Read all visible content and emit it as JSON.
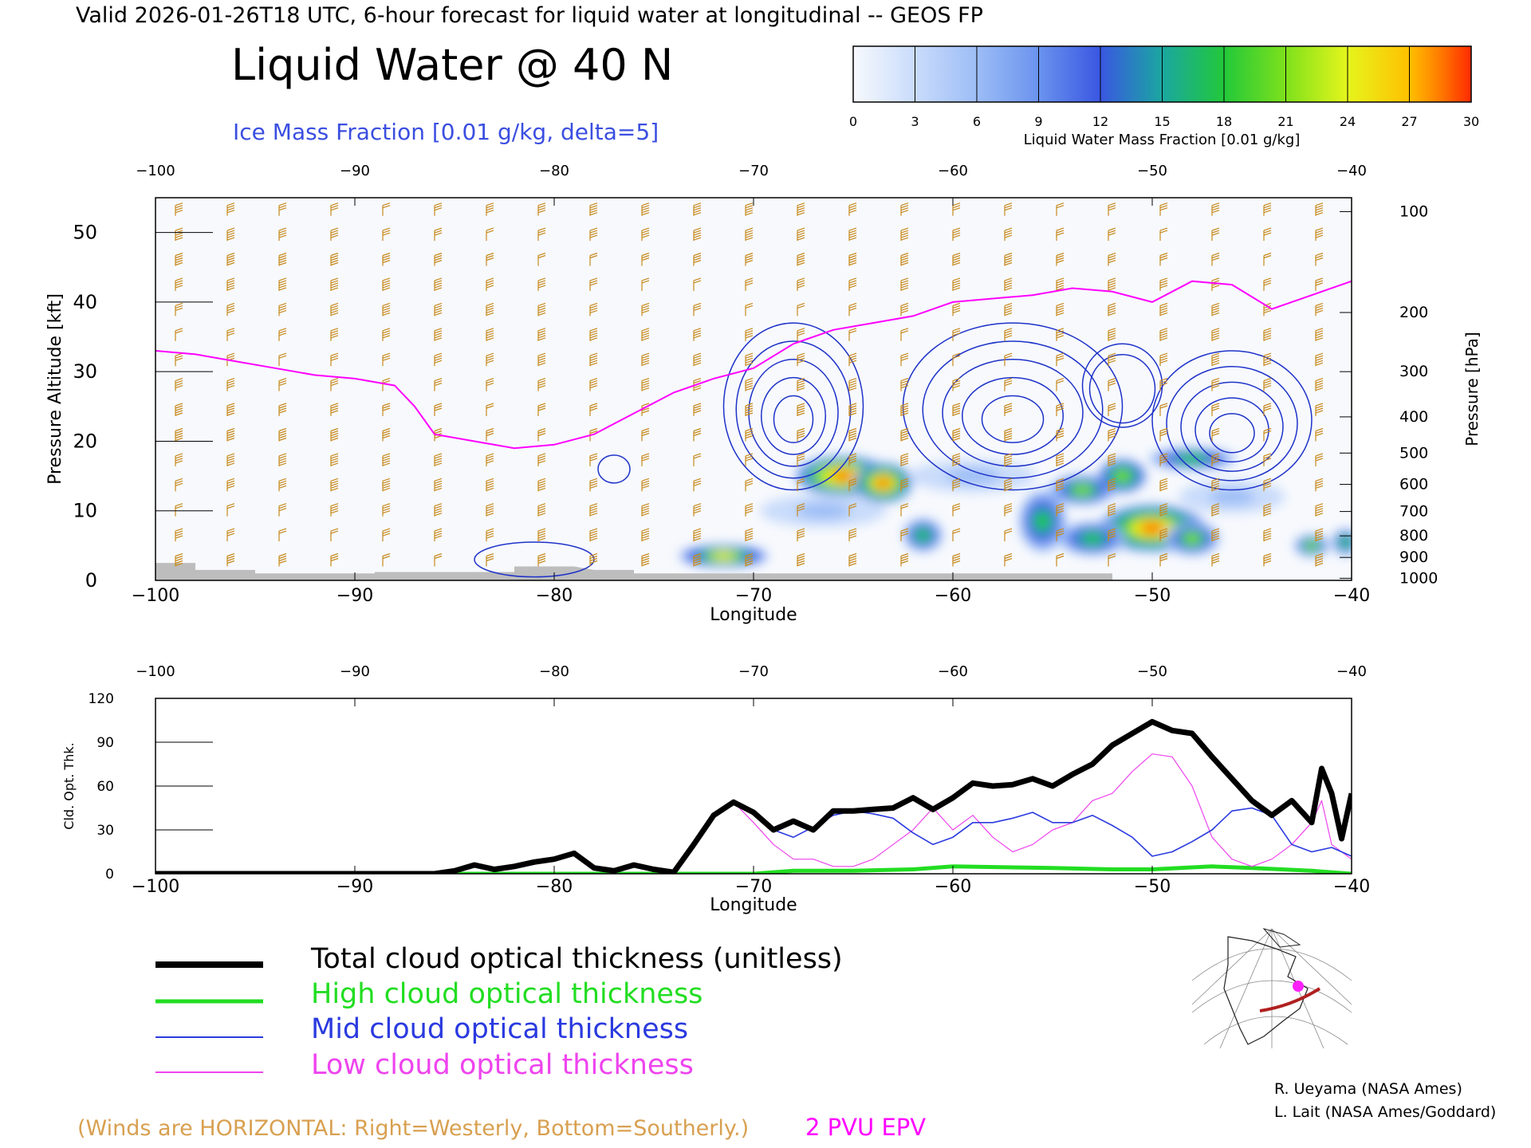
{
  "header": {
    "valid_line": "Valid 2026-01-26T18 UTC, 6-hour forecast for liquid water at longitudinal -- GEOS FP",
    "title": "Liquid Water @ 40 N",
    "subtitle": "Ice Mass Fraction [0.01 g/kg, delta=5]"
  },
  "colorbar": {
    "label": "Liquid Water Mass Fraction [0.01 g/kg]",
    "ticks": [
      "0",
      "3",
      "6",
      "9",
      "12",
      "15",
      "18",
      "21",
      "24",
      "27",
      "30"
    ],
    "colors": [
      "#f7f9fd",
      "#c9dcfb",
      "#9dbdf6",
      "#6a93ee",
      "#3a57e2",
      "#1aa7a0",
      "#22c83a",
      "#7ee11c",
      "#e6f51c",
      "#ffc000",
      "#ff7a00",
      "#ff2a00"
    ]
  },
  "colors": {
    "wind_barbs": "#c88a1c",
    "pvu_line": "#ff00ff",
    "ice_contours": "#1e32c8",
    "total": "#000000",
    "high": "#22dd22",
    "mid": "#2a3adf",
    "low": "#ee44ee",
    "terrain": "#bdbdbd"
  },
  "chart_data": [
    {
      "type": "heatmap",
      "title": "Liquid Water @ 40 N",
      "xlabel": "Longitude",
      "ylabel": "Pressure Altitude [kft]",
      "ylabel_right": "Pressure [hPa]",
      "xlim": [
        -100,
        -40
      ],
      "ylim": [
        0,
        55
      ],
      "x_ticks": [
        "-100",
        "-90",
        "-80",
        "-70",
        "-60",
        "-50",
        "-40"
      ],
      "y_ticks": [
        "0",
        "10",
        "20",
        "30",
        "40",
        "50"
      ],
      "pressure_ticks": [
        {
          "label": "100",
          "kft": 53
        },
        {
          "label": "200",
          "kft": 38.5
        },
        {
          "label": "300",
          "kft": 30
        },
        {
          "label": "400",
          "kft": 23.5
        },
        {
          "label": "500",
          "kft": 18.3
        },
        {
          "label": "600",
          "kft": 13.8
        },
        {
          "label": "700",
          "kft": 9.9
        },
        {
          "label": "800",
          "kft": 6.4
        },
        {
          "label": "900",
          "kft": 3.3
        },
        {
          "label": "1000",
          "kft": 0.3
        }
      ],
      "liquid_water_blobs": [
        {
          "lon": -71.5,
          "kft": 3.5,
          "value": 22,
          "wlon": 2.0,
          "hkft": 1.2
        },
        {
          "lon": -65.5,
          "kft": 15,
          "value": 27,
          "wlon": 2.2,
          "hkft": 2.5
        },
        {
          "lon": -63.5,
          "kft": 14,
          "value": 26,
          "wlon": 1.3,
          "hkft": 2.5
        },
        {
          "lon": -61.5,
          "kft": 6.5,
          "value": 16,
          "wlon": 0.8,
          "hkft": 2.0
        },
        {
          "lon": -55.5,
          "kft": 8.5,
          "value": 17,
          "wlon": 1.0,
          "hkft": 4.0
        },
        {
          "lon": -53.5,
          "kft": 13,
          "value": 18,
          "wlon": 1.5,
          "hkft": 1.8
        },
        {
          "lon": -51.5,
          "kft": 15,
          "value": 20,
          "wlon": 1.0,
          "hkft": 2.0
        },
        {
          "lon": -50.0,
          "kft": 7.5,
          "value": 26,
          "wlon": 2.5,
          "hkft": 3.0
        },
        {
          "lon": -53.0,
          "kft": 6.0,
          "value": 16,
          "wlon": 1.5,
          "hkft": 2.0
        },
        {
          "lon": -48.0,
          "kft": 6.0,
          "value": 18,
          "wlon": 1.2,
          "hkft": 2.0
        },
        {
          "lon": -48.0,
          "kft": 17.5,
          "value": 16,
          "wlon": 2.0,
          "hkft": 1.2
        },
        {
          "lon": -42.0,
          "kft": 5.0,
          "value": 18,
          "wlon": 0.7,
          "hkft": 1.2
        },
        {
          "lon": -40.3,
          "kft": 5.5,
          "value": 17,
          "wlon": 0.5,
          "hkft": 1.5
        },
        {
          "lon": -66.5,
          "kft": 10,
          "value": 6,
          "wlon": 3.0,
          "hkft": 2.0
        },
        {
          "lon": -59.0,
          "kft": 15,
          "value": 5,
          "wlon": 3.0,
          "hkft": 2.0
        },
        {
          "lon": -46.0,
          "kft": 12,
          "value": 5,
          "wlon": 2.5,
          "hkft": 2.0
        }
      ],
      "pvu_2_line_kft": [
        [
          -100,
          33
        ],
        [
          -98,
          32.5
        ],
        [
          -96,
          31.5
        ],
        [
          -94,
          30.5
        ],
        [
          -92,
          29.5
        ],
        [
          -90,
          29
        ],
        [
          -88,
          28
        ],
        [
          -87,
          25
        ],
        [
          -86,
          21
        ],
        [
          -84,
          20
        ],
        [
          -82,
          19
        ],
        [
          -80,
          19.5
        ],
        [
          -78,
          21
        ],
        [
          -76,
          24
        ],
        [
          -74,
          27
        ],
        [
          -72,
          29
        ],
        [
          -70,
          30.5
        ],
        [
          -68,
          34
        ],
        [
          -66,
          36
        ],
        [
          -64,
          37
        ],
        [
          -62,
          38
        ],
        [
          -60,
          40
        ],
        [
          -58,
          40.5
        ],
        [
          -56,
          41
        ],
        [
          -54,
          42
        ],
        [
          -52,
          41.5
        ],
        [
          -50,
          40
        ],
        [
          -48,
          43
        ],
        [
          -46,
          42.5
        ],
        [
          -44,
          39
        ],
        [
          -42,
          41
        ],
        [
          -40,
          43
        ]
      ],
      "ice_contour_rings": [
        {
          "lon": -68,
          "kft": 25,
          "wlon": 3.5,
          "hkft": 12,
          "levels": 5
        },
        {
          "lon": -57,
          "kft": 25,
          "wlon": 5.5,
          "hkft": 12,
          "levels": 5
        },
        {
          "lon": -46,
          "kft": 23,
          "wlon": 4.0,
          "hkft": 10,
          "levels": 5
        },
        {
          "lon": -51.5,
          "kft": 28,
          "wlon": 2.0,
          "hkft": 6,
          "levels": 2
        },
        {
          "lon": -77,
          "kft": 16,
          "wlon": 0.8,
          "hkft": 2,
          "levels": 1
        },
        {
          "lon": -81,
          "kft": 3,
          "wlon": 3.0,
          "hkft": 2.5,
          "levels": 1
        }
      ],
      "terrain_kft": [
        [
          -100,
          2.5
        ],
        [
          -98,
          2.5
        ],
        [
          -98,
          1.5
        ],
        [
          -95,
          1.5
        ],
        [
          -95,
          1
        ],
        [
          -91,
          1
        ],
        [
          -90,
          1
        ],
        [
          -89,
          1
        ],
        [
          -89,
          1.2
        ],
        [
          -82,
          1.2
        ],
        [
          -82,
          2
        ],
        [
          -79,
          2
        ],
        [
          -78,
          1.5
        ],
        [
          -76,
          1.5
        ],
        [
          -76,
          1
        ],
        [
          -52,
          1
        ],
        [
          -52,
          0
        ],
        [
          -40,
          0
        ]
      ]
    },
    {
      "type": "line",
      "xlabel": "Longitude",
      "ylabel": "Cld. Opt. Thk.",
      "xlim": [
        -100,
        -40
      ],
      "ylim": [
        0,
        120
      ],
      "x_ticks": [
        "-100",
        "-90",
        "-80",
        "-70",
        "-60",
        "-50",
        "-40"
      ],
      "y_ticks": [
        "0",
        "30",
        "60",
        "90",
        "120"
      ],
      "series": [
        {
          "name": "Total cloud optical thickness (unitless)",
          "values": [
            [
              -100,
              0
            ],
            [
              -86,
              0
            ],
            [
              -85,
              2
            ],
            [
              -84,
              6
            ],
            [
              -83,
              3
            ],
            [
              -82,
              5
            ],
            [
              -81,
              8
            ],
            [
              -80,
              10
            ],
            [
              -79,
              14
            ],
            [
              -78,
              4
            ],
            [
              -77,
              2
            ],
            [
              -76,
              6
            ],
            [
              -75,
              3
            ],
            [
              -74,
              1
            ],
            [
              -73,
              20
            ],
            [
              -72,
              40
            ],
            [
              -71,
              49
            ],
            [
              -70,
              42
            ],
            [
              -69,
              30
            ],
            [
              -68,
              36
            ],
            [
              -67,
              30
            ],
            [
              -66,
              43
            ],
            [
              -65,
              43
            ],
            [
              -64,
              44
            ],
            [
              -63,
              45
            ],
            [
              -62,
              52
            ],
            [
              -61,
              44
            ],
            [
              -60,
              52
            ],
            [
              -59,
              62
            ],
            [
              -58,
              60
            ],
            [
              -57,
              61
            ],
            [
              -56,
              65
            ],
            [
              -55,
              60
            ],
            [
              -54,
              68
            ],
            [
              -53,
              75
            ],
            [
              -52,
              88
            ],
            [
              -51,
              96
            ],
            [
              -50,
              104
            ],
            [
              -49,
              98
            ],
            [
              -48,
              96
            ],
            [
              -47,
              80
            ],
            [
              -46,
              65
            ],
            [
              -45,
              50
            ],
            [
              -44,
              40
            ],
            [
              -43,
              50
            ],
            [
              -42,
              35
            ],
            [
              -41.5,
              72
            ],
            [
              -41,
              55
            ],
            [
              -40.5,
              24
            ],
            [
              -40,
              55
            ]
          ]
        },
        {
          "name": "High cloud optical thickness",
          "values": [
            [
              -100,
              0
            ],
            [
              -70,
              0
            ],
            [
              -68,
              2
            ],
            [
              -65,
              2
            ],
            [
              -62,
              3
            ],
            [
              -60,
              5
            ],
            [
              -55,
              4
            ],
            [
              -52,
              3
            ],
            [
              -50,
              3
            ],
            [
              -47,
              5
            ],
            [
              -45,
              4
            ],
            [
              -42,
              2
            ],
            [
              -40,
              0
            ]
          ]
        },
        {
          "name": "Mid cloud optical thickness",
          "values": [
            [
              -100,
              0
            ],
            [
              -86,
              0
            ],
            [
              -85,
              2
            ],
            [
              -84,
              6
            ],
            [
              -83,
              3
            ],
            [
              -82,
              5
            ],
            [
              -81,
              8
            ],
            [
              -80,
              10
            ],
            [
              -79,
              14
            ],
            [
              -78,
              4
            ],
            [
              -77,
              2
            ],
            [
              -76,
              6
            ],
            [
              -75,
              3
            ],
            [
              -74,
              1
            ],
            [
              -73,
              20
            ],
            [
              -72,
              40
            ],
            [
              -71,
              49
            ],
            [
              -70,
              42
            ],
            [
              -69,
              30
            ],
            [
              -68,
              25
            ],
            [
              -67,
              32
            ],
            [
              -66,
              40
            ],
            [
              -65,
              43
            ],
            [
              -64,
              41
            ],
            [
              -63,
              38
            ],
            [
              -62,
              28
            ],
            [
              -61,
              20
            ],
            [
              -60,
              25
            ],
            [
              -59,
              35
            ],
            [
              -58,
              35
            ],
            [
              -57,
              38
            ],
            [
              -56,
              42
            ],
            [
              -55,
              35
            ],
            [
              -54,
              35
            ],
            [
              -53,
              40
            ],
            [
              -52,
              33
            ],
            [
              -51,
              25
            ],
            [
              -50,
              12
            ],
            [
              -49,
              15
            ],
            [
              -48,
              22
            ],
            [
              -47,
              30
            ],
            [
              -46,
              43
            ],
            [
              -45,
              45
            ],
            [
              -44,
              40
            ],
            [
              -43,
              20
            ],
            [
              -42,
              15
            ],
            [
              -41,
              18
            ],
            [
              -40,
              12
            ]
          ]
        },
        {
          "name": "Low cloud optical thickness",
          "values": [
            [
              -100,
              0
            ],
            [
              -86,
              0
            ],
            [
              -85,
              2
            ],
            [
              -84,
              6
            ],
            [
              -83,
              3
            ],
            [
              -82,
              5
            ],
            [
              -81,
              8
            ],
            [
              -80,
              10
            ],
            [
              -79,
              14
            ],
            [
              -78,
              4
            ],
            [
              -77,
              2
            ],
            [
              -76,
              6
            ],
            [
              -75,
              3
            ],
            [
              -74,
              1
            ],
            [
              -73,
              20
            ],
            [
              -72,
              40
            ],
            [
              -71,
              49
            ],
            [
              -70,
              35
            ],
            [
              -69,
              20
            ],
            [
              -68,
              10
            ],
            [
              -67,
              10
            ],
            [
              -66,
              5
            ],
            [
              -65,
              5
            ],
            [
              -64,
              10
            ],
            [
              -63,
              20
            ],
            [
              -62,
              30
            ],
            [
              -61,
              45
            ],
            [
              -60,
              30
            ],
            [
              -59,
              40
            ],
            [
              -58,
              25
            ],
            [
              -57,
              15
            ],
            [
              -56,
              20
            ],
            [
              -55,
              30
            ],
            [
              -54,
              35
            ],
            [
              -53,
              50
            ],
            [
              -52,
              55
            ],
            [
              -51,
              70
            ],
            [
              -50,
              82
            ],
            [
              -49,
              80
            ],
            [
              -48,
              60
            ],
            [
              -47,
              25
            ],
            [
              -46,
              10
            ],
            [
              -45,
              5
            ],
            [
              -44,
              10
            ],
            [
              -43,
              20
            ],
            [
              -42,
              35
            ],
            [
              -41.5,
              50
            ],
            [
              -41,
              20
            ],
            [
              -40,
              10
            ]
          ]
        }
      ]
    }
  ],
  "legend": [
    {
      "label": "Total cloud optical thickness (unitless)",
      "color": "#000000"
    },
    {
      "label": "High cloud optical thickness",
      "color": "#22dd22"
    },
    {
      "label": "Mid cloud optical thickness",
      "color": "#2a3adf"
    },
    {
      "label": "Low cloud optical thickness",
      "color": "#ee44ee"
    }
  ],
  "footer": {
    "winds_note": "(Winds are HORIZONTAL: Right=Westerly, Bottom=Southerly.)",
    "pvu_note": "2 PVU EPV",
    "credit_1": "R. Ueyama (NASA Ames)",
    "credit_2": "L. Lait (NASA Ames/Goddard)"
  }
}
